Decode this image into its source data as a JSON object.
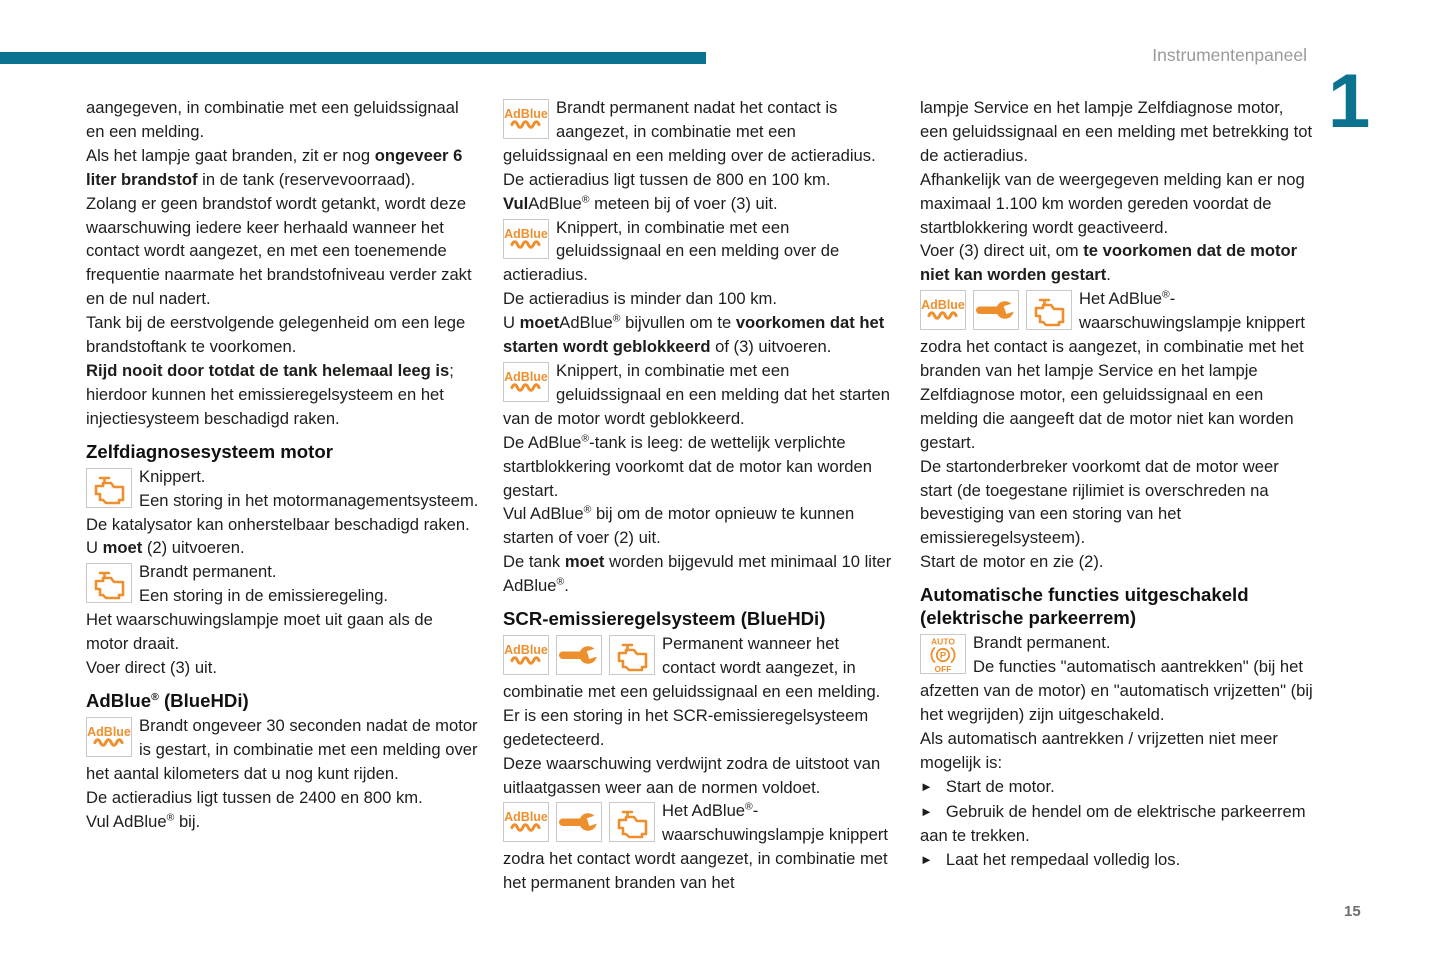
{
  "page": {
    "header": "Instrumentenpaneel",
    "chapter_number": "1",
    "page_number": "15"
  },
  "bullet_char": "►",
  "colors": {
    "accent_teal": "#0b7390",
    "icon_orange": "#ee8f2e",
    "header_gray": "#9a9a9a",
    "page_number_gray": "#6e6e6e",
    "body_text": "#1d1d1b",
    "icon_border": "#c9c9c9"
  },
  "icon_legend": {
    "adblue-icon": "AdBlue level warning lamp (AdBlue text with wave)",
    "service-wrench-icon": "Service warning lamp (wrench)",
    "engine-icon": "Engine self-diagnosis warning lamp (engine outline)",
    "parking-brake-auto-off-icon": "Electric parking brake automatic functions off (AUTO (P) OFF)"
  },
  "columns": [
    {
      "blocks": [
        {
          "type": "p",
          "runs": [
            {
              "t": "aangegeven, in combinatie met een geluidssignaal en een melding."
            }
          ]
        },
        {
          "type": "p",
          "runs": [
            {
              "t": "Als het lampje gaat branden, zit er nog "
            },
            {
              "t": "ongeveer 6 liter brandstof",
              "b": true
            },
            {
              "t": " in de tank (reservevoorraad)."
            }
          ]
        },
        {
          "type": "p",
          "runs": [
            {
              "t": "Zolang er geen brandstof wordt getankt, wordt deze waarschuwing iedere keer herhaald wanneer het contact wordt aangezet, en met een toenemende frequentie naarmate het brandstofniveau verder zakt en de nul nadert."
            }
          ]
        },
        {
          "type": "p",
          "runs": [
            {
              "t": "Tank bij de eerstvolgende gelegenheid om een lege brandstoftank te voorkomen."
            }
          ]
        },
        {
          "type": "p",
          "runs": [
            {
              "t": "Rijd nooit door totdat de tank helemaal leeg is",
              "b": true
            },
            {
              "t": "; hierdoor kunnen het emissieregelsysteem en het injectiesysteem beschadigd raken."
            }
          ]
        },
        {
          "type": "h2",
          "runs": [
            {
              "t": "Zelfdiagnosesysteem motor"
            }
          ]
        },
        {
          "type": "icon",
          "icons": [
            "engine-icon"
          ],
          "runs": [
            {
              "t": "Knippert."
            },
            {
              "br": true
            },
            {
              "t": "Een storing in het motormanagementsysteem."
            }
          ]
        },
        {
          "type": "p",
          "runs": [
            {
              "t": "De katalysator kan onherstelbaar beschadigd raken."
            }
          ]
        },
        {
          "type": "p",
          "runs": [
            {
              "t": "U "
            },
            {
              "t": "moet",
              "b": true
            },
            {
              "t": " (2) uitvoeren."
            }
          ]
        },
        {
          "type": "icon",
          "icons": [
            "engine-icon"
          ],
          "runs": [
            {
              "t": "Brandt permanent."
            },
            {
              "br": true
            },
            {
              "t": "Een storing in de emissieregeling."
            }
          ]
        },
        {
          "type": "p",
          "runs": [
            {
              "t": "Het waarschuwingslampje moet uit gaan als de motor draait."
            }
          ]
        },
        {
          "type": "p",
          "runs": [
            {
              "t": "Voer direct (3) uit."
            }
          ]
        },
        {
          "type": "h2",
          "runs": [
            {
              "t": "AdBlue"
            },
            {
              "t": "®",
              "sup": true
            },
            {
              "t": " (BlueHDi)"
            }
          ]
        },
        {
          "type": "icon",
          "icons": [
            "adblue-icon"
          ],
          "runs": [
            {
              "t": "Brandt ongeveer 30 seconden nadat de motor is gestart, in combinatie met een melding over het aantal kilometers dat u nog kunt rijden."
            }
          ]
        },
        {
          "type": "p",
          "runs": [
            {
              "t": "De actieradius ligt tussen de 2400 en 800 km."
            }
          ]
        },
        {
          "type": "p",
          "runs": [
            {
              "t": "Vul AdBlue"
            },
            {
              "t": "®",
              "sup": true
            },
            {
              "t": " bij."
            }
          ]
        }
      ]
    },
    {
      "blocks": [
        {
          "type": "icon",
          "icons": [
            "adblue-icon"
          ],
          "runs": [
            {
              "t": "Brandt permanent nadat het contact is aangezet, in combinatie met een geluidssignaal en een melding over de actieradius."
            }
          ]
        },
        {
          "type": "p",
          "runs": [
            {
              "t": "De actieradius ligt tussen de 800 en 100 km."
            }
          ]
        },
        {
          "type": "p",
          "runs": [
            {
              "t": "Vul",
              "b": true
            },
            {
              "t": "AdBlue"
            },
            {
              "t": "®",
              "sup": true
            },
            {
              "t": " meteen bij of voer (3) uit."
            }
          ]
        },
        {
          "type": "icon",
          "icons": [
            "adblue-icon"
          ],
          "runs": [
            {
              "t": "Knippert, in combinatie met een geluidssignaal en een melding over de actieradius."
            }
          ]
        },
        {
          "type": "p",
          "runs": [
            {
              "t": "De actieradius is minder dan 100 km."
            }
          ]
        },
        {
          "type": "p",
          "runs": [
            {
              "t": "U "
            },
            {
              "t": "moet",
              "b": true
            },
            {
              "t": "AdBlue"
            },
            {
              "t": "®",
              "sup": true
            },
            {
              "t": " bijvullen om te "
            },
            {
              "t": "voorkomen dat het starten wordt geblokkeerd",
              "b": true
            },
            {
              "t": " of (3) uitvoeren."
            }
          ]
        },
        {
          "type": "icon",
          "icons": [
            "adblue-icon"
          ],
          "runs": [
            {
              "t": "Knippert, in combinatie met een geluidssignaal en een melding dat het starten van de motor wordt geblokkeerd."
            }
          ]
        },
        {
          "type": "p",
          "runs": [
            {
              "t": "De AdBlue"
            },
            {
              "t": "®",
              "sup": true
            },
            {
              "t": "-tank is leeg: de wettelijk verplichte startblokkering voorkomt dat de motor kan worden gestart."
            }
          ]
        },
        {
          "type": "p",
          "runs": [
            {
              "t": "Vul AdBlue"
            },
            {
              "t": "®",
              "sup": true
            },
            {
              "t": " bij om de motor opnieuw te kunnen starten of voer (2) uit."
            }
          ]
        },
        {
          "type": "p",
          "runs": [
            {
              "t": "De tank "
            },
            {
              "t": "moet",
              "b": true
            },
            {
              "t": " worden bijgevuld met minimaal 10 liter AdBlue"
            },
            {
              "t": "®",
              "sup": true
            },
            {
              "t": "."
            }
          ]
        },
        {
          "type": "h2",
          "runs": [
            {
              "t": "SCR-emissieregelsysteem (BlueHDi)"
            }
          ]
        },
        {
          "type": "icon",
          "icons": [
            "adblue-icon",
            "service-wrench-icon",
            "engine-icon"
          ],
          "runs": [
            {
              "t": "Permanent wanneer het contact wordt aangezet, in combinatie met een geluidssignaal en een melding."
            }
          ]
        },
        {
          "type": "p",
          "runs": [
            {
              "t": "Er is een storing in het SCR-emissieregelsysteem gedetecteerd."
            }
          ]
        },
        {
          "type": "p",
          "runs": [
            {
              "t": "Deze waarschuwing verdwijnt zodra de uitstoot van uitlaatgassen weer aan de normen voldoet."
            }
          ]
        },
        {
          "type": "icon",
          "icons": [
            "adblue-icon",
            "service-wrench-icon",
            "engine-icon"
          ],
          "runs": [
            {
              "t": "Het AdBlue"
            },
            {
              "t": "®",
              "sup": true
            },
            {
              "t": "-waarschuwingslampje knippert zodra het contact wordt aangezet, in combinatie met het permanent branden van het"
            }
          ]
        }
      ]
    },
    {
      "blocks": [
        {
          "type": "p",
          "runs": [
            {
              "t": "lampje Service en het lampje Zelfdiagnose motor, een geluidssignaal en een melding met betrekking tot de actieradius."
            }
          ]
        },
        {
          "type": "p",
          "runs": [
            {
              "t": "Afhankelijk van de weergegeven melding kan er nog maximaal 1.100 km worden gereden voordat de startblokkering wordt geactiveerd."
            }
          ]
        },
        {
          "type": "p",
          "runs": [
            {
              "t": "Voer (3) direct uit, om "
            },
            {
              "t": "te voorkomen dat de motor niet kan worden gestart",
              "b": true
            },
            {
              "t": "."
            }
          ]
        },
        {
          "type": "icon",
          "icons": [
            "adblue-icon",
            "service-wrench-icon",
            "engine-icon"
          ],
          "runs": [
            {
              "t": "Het AdBlue"
            },
            {
              "t": "®",
              "sup": true
            },
            {
              "t": "-waarschuwingslampje knippert zodra het contact is aangezet, in combinatie met het branden van het lampje Service en het lampje Zelfdiagnose motor, een geluidssignaal en een melding die aangeeft dat de motor niet kan worden gestart."
            }
          ]
        },
        {
          "type": "p",
          "runs": [
            {
              "t": "De startonderbreker voorkomt dat de motor weer start (de toegestane rijlimiet is overschreden na bevestiging van een storing van het emissieregelsysteem)."
            }
          ]
        },
        {
          "type": "p",
          "runs": [
            {
              "t": "Start de motor en zie (2)."
            }
          ]
        },
        {
          "type": "h2",
          "runs": [
            {
              "t": "Automatische functies uitgeschakeld (elektrische parkeerrem)"
            }
          ]
        },
        {
          "type": "icon",
          "icons": [
            "parking-brake-auto-off-icon"
          ],
          "runs": [
            {
              "t": "Brandt permanent."
            },
            {
              "br": true
            },
            {
              "t": "De functies \"automatisch aantrekken\" (bij het afzetten van de motor) en \"automatisch vrijzetten\" (bij het wegrijden) zijn uitgeschakeld."
            }
          ]
        },
        {
          "type": "p",
          "runs": [
            {
              "t": "Als automatisch aantrekken / vrijzetten niet meer mogelijk is:"
            }
          ]
        },
        {
          "type": "bullet",
          "runs": [
            {
              "t": "Start de motor."
            }
          ]
        },
        {
          "type": "bullet",
          "runs": [
            {
              "t": "Gebruik de hendel om de elektrische parkeerrem aan te trekken."
            }
          ]
        },
        {
          "type": "bullet",
          "runs": [
            {
              "t": "Laat het rempedaal volledig los."
            }
          ]
        }
      ]
    }
  ]
}
